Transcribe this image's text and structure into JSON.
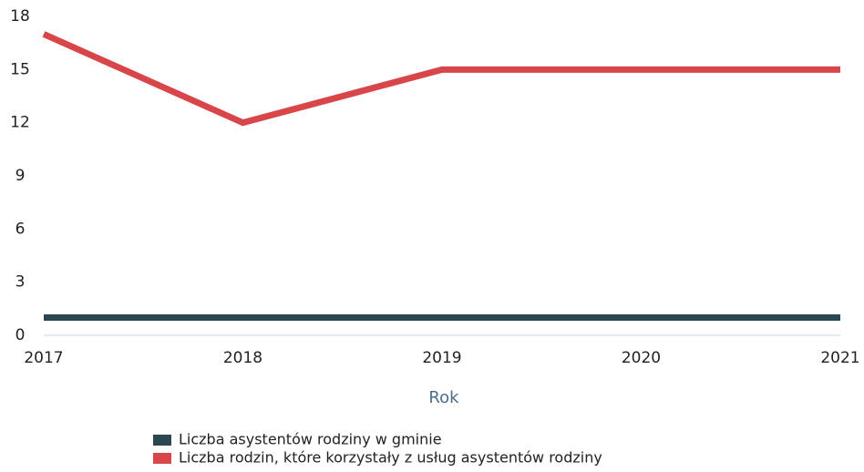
{
  "chart_data": {
    "type": "line",
    "x_label": "Rok",
    "categories": [
      "2017",
      "2018",
      "2019",
      "2020",
      "2021"
    ],
    "series": [
      {
        "name": "Liczba asystentów rodziny w gminie",
        "color": "#2b4752",
        "values": [
          1,
          1,
          1,
          1,
          1
        ]
      },
      {
        "name": "Liczba rodzin, które korzystały z usług asystentów rodziny",
        "color": "#d9464a",
        "values": [
          17,
          12,
          15,
          15,
          15
        ]
      }
    ],
    "ylim": [
      0,
      18
    ],
    "yticks": [
      0,
      3,
      6,
      9,
      12,
      15,
      18
    ],
    "grid": false,
    "legend": "bottom"
  }
}
